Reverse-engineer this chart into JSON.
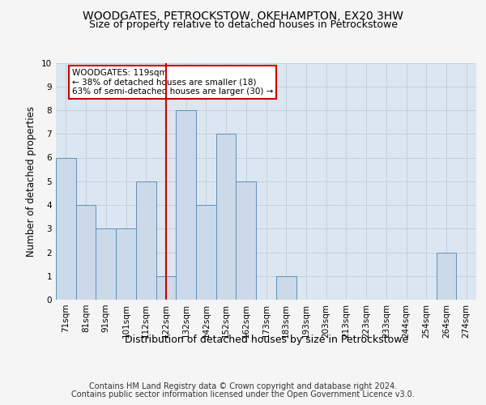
{
  "title": "WOODGATES, PETROCKSTOW, OKEHAMPTON, EX20 3HW",
  "subtitle": "Size of property relative to detached houses in Petrockstowe",
  "xlabel": "Distribution of detached houses by size in Petrockstowe",
  "ylabel": "Number of detached properties",
  "footer_line1": "Contains HM Land Registry data © Crown copyright and database right 2024.",
  "footer_line2": "Contains public sector information licensed under the Open Government Licence v3.0.",
  "categories": [
    "71sqm",
    "81sqm",
    "91sqm",
    "101sqm",
    "112sqm",
    "122sqm",
    "132sqm",
    "142sqm",
    "152sqm",
    "162sqm",
    "173sqm",
    "183sqm",
    "193sqm",
    "203sqm",
    "213sqm",
    "223sqm",
    "233sqm",
    "244sqm",
    "254sqm",
    "264sqm",
    "274sqm"
  ],
  "values": [
    6,
    4,
    3,
    3,
    5,
    1,
    8,
    4,
    7,
    5,
    0,
    1,
    0,
    0,
    0,
    0,
    0,
    0,
    0,
    2,
    0
  ],
  "bar_color": "#ccd9e8",
  "bar_edge_color": "#6090b8",
  "highlight_index": 5,
  "highlight_line_color": "#cc0000",
  "annotation_text": "WOODGATES: 119sqm\n← 38% of detached houses are smaller (18)\n63% of semi-detached houses are larger (30) →",
  "annotation_box_color": "#ffffff",
  "annotation_box_edge_color": "#cc0000",
  "ylim": [
    0,
    10
  ],
  "yticks": [
    0,
    1,
    2,
    3,
    4,
    5,
    6,
    7,
    8,
    9,
    10
  ],
  "grid_color": "#c0ccd8",
  "plot_bg_color": "#dce6f0",
  "fig_bg_color": "#f5f5f5",
  "title_fontsize": 10,
  "subtitle_fontsize": 9,
  "xlabel_fontsize": 9,
  "ylabel_fontsize": 8.5,
  "tick_fontsize": 7.5,
  "annotation_fontsize": 7.5,
  "footer_fontsize": 7
}
